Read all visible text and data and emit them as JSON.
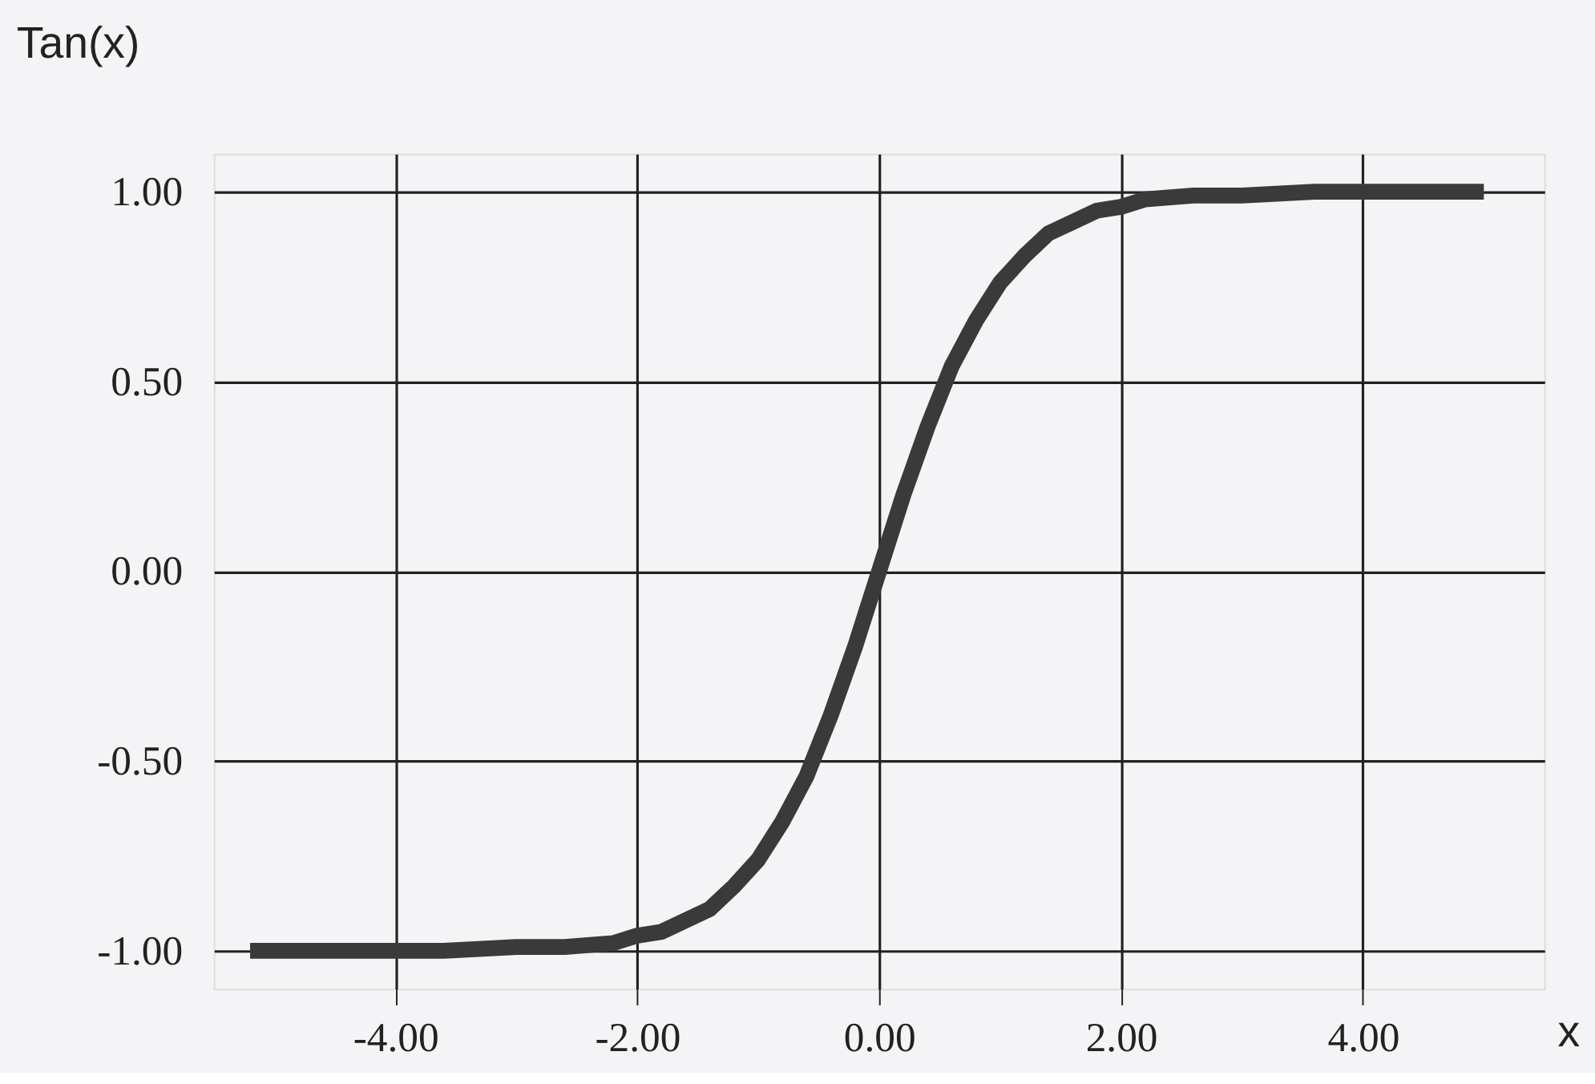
{
  "chart_data": {
    "type": "line",
    "xlabel": "x",
    "ylabel": "Tan(x)",
    "x": [
      -5.2,
      -4.4,
      -3.6,
      -3.0,
      -2.6,
      -2.2,
      -2.0,
      -1.8,
      -1.6,
      -1.4,
      -1.2,
      -1.0,
      -0.8,
      -0.6,
      -0.4,
      -0.2,
      0.0,
      0.2,
      0.4,
      0.6,
      0.8,
      1.0,
      1.2,
      1.4,
      1.6,
      1.8,
      2.0,
      2.2,
      2.6,
      3.0,
      3.6,
      4.4,
      5.0
    ],
    "series": [
      {
        "color": "#3a3a3a",
        "values": [
          -1.0,
          -1.0,
          -1.0,
          -0.99,
          -0.99,
          -0.98,
          -0.96,
          -0.95,
          -0.92,
          -0.89,
          -0.83,
          -0.76,
          -0.66,
          -0.54,
          -0.38,
          -0.2,
          0.0,
          0.2,
          0.38,
          0.54,
          0.66,
          0.76,
          0.83,
          0.89,
          0.92,
          0.95,
          0.96,
          0.98,
          0.99,
          0.99,
          1.0,
          1.0,
          1.0
        ]
      }
    ],
    "xlim": [
      -5.5,
      5.5
    ],
    "ylim": [
      -1.1,
      1.1
    ],
    "xticks": [
      {
        "value": -4,
        "label": "-4.00"
      },
      {
        "value": -2,
        "label": "-2.00"
      },
      {
        "value": 0,
        "label": "0.00"
      },
      {
        "value": 2,
        "label": "2.00"
      },
      {
        "value": 4,
        "label": "4.00"
      }
    ],
    "yticks": [
      {
        "value": -1,
        "label": "-1.00"
      },
      {
        "value": -0.5,
        "label": "-0.50"
      },
      {
        "value": 0,
        "label": "0.00"
      },
      {
        "value": 0.5,
        "label": "0.50"
      },
      {
        "value": 1,
        "label": "1.00"
      }
    ],
    "grid": true,
    "legend": false,
    "marker": "none",
    "line_style": "solid"
  }
}
